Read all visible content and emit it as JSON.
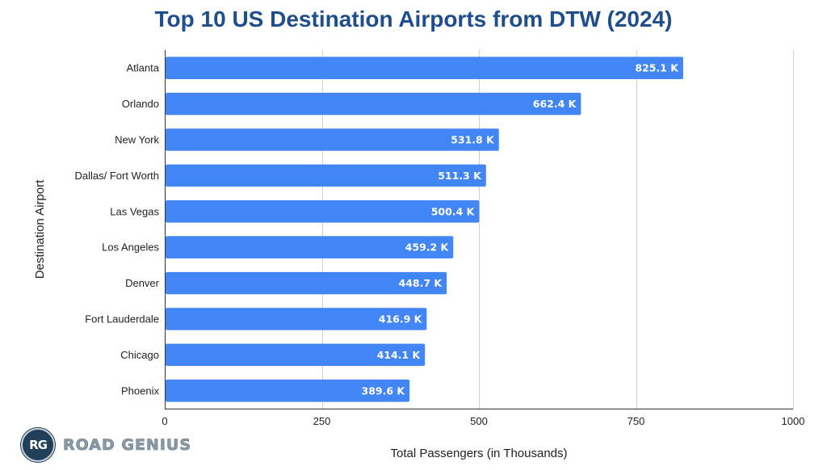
{
  "chart_data": {
    "type": "bar",
    "orientation": "horizontal",
    "title": "Top 10 US Destination Airports from DTW (2024)",
    "xlabel": "Total Passengers (in Thousands)",
    "ylabel": "Destination Airport",
    "xlim": [
      0,
      1000
    ],
    "xticks": [
      0,
      250,
      500,
      750,
      1000
    ],
    "xtick_labels": [
      "0",
      "250",
      "500",
      "750",
      "1000"
    ],
    "grid": "vertical",
    "categories": [
      "Atlanta",
      "Orlando",
      "New York",
      "Dallas/ Fort Worth",
      "Las Vegas",
      "Los Angeles",
      "Denver",
      "Fort Lauderdale",
      "Chicago",
      "Phoenix"
    ],
    "values": [
      825.1,
      662.4,
      531.8,
      511.3,
      500.4,
      459.2,
      448.7,
      416.9,
      414.1,
      389.6
    ],
    "data_labels": [
      "825.1 K",
      "662.4 K",
      "531.8 K",
      "511.3 K",
      "500.4 K",
      "459.2 K",
      "448.7 K",
      "416.9 K",
      "414.1 K",
      "389.6 K"
    ],
    "bar_color": "#4285f4",
    "title_color": "#1f4e8c"
  },
  "branding": {
    "logo_initials": "RG",
    "logo_text": "ROAD GENIUS"
  }
}
